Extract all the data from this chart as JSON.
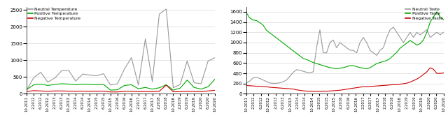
{
  "x_labels": [
    "10.2011",
    "2.2012",
    "6.2012",
    "10.2012",
    "2.2013",
    "6.2013",
    "10.2013",
    "2.2014",
    "6.2014",
    "10.2014",
    "2.2015",
    "6.2015",
    "10.2015",
    "2.2016",
    "6.2016",
    "10.2016",
    "2.2017",
    "6.2017",
    "10.2017",
    "2.2018",
    "6.2018",
    "10.2018",
    "2.2019",
    "6.2019",
    "10.2019",
    "2.2020",
    "6.2020",
    "10.2020"
  ],
  "temp_neutral": [
    120,
    490,
    640,
    350,
    470,
    690,
    700,
    380,
    590,
    560,
    540,
    600,
    260,
    300,
    740,
    1080,
    260,
    1640,
    360,
    2380,
    2530,
    180,
    280,
    980,
    330,
    300,
    980,
    1080
  ],
  "temp_positive": [
    130,
    270,
    290,
    250,
    280,
    300,
    290,
    270,
    290,
    280,
    270,
    280,
    110,
    120,
    250,
    270,
    150,
    190,
    140,
    180,
    270,
    110,
    170,
    410,
    190,
    140,
    210,
    440
  ],
  "temp_negative": [
    70,
    95,
    85,
    75,
    85,
    85,
    80,
    75,
    80,
    75,
    75,
    80,
    55,
    55,
    75,
    75,
    65,
    70,
    65,
    75,
    260,
    60,
    65,
    75,
    70,
    65,
    85,
    105
  ],
  "taste_neutral": [
    210,
    250,
    310,
    320,
    300,
    270,
    240,
    210,
    205,
    205,
    215,
    235,
    270,
    340,
    420,
    470,
    460,
    440,
    420,
    410,
    430,
    900,
    1250,
    800,
    800,
    1000,
    1050,
    900,
    1000,
    950,
    900,
    850,
    850,
    800,
    1000,
    1100,
    1000,
    850,
    800,
    750,
    850,
    900,
    1100,
    1250,
    1300,
    1200,
    1100,
    1000,
    1100,
    1200,
    1100,
    1200,
    1150,
    1200,
    1250,
    1100,
    1150,
    1200,
    1150,
    1200
  ],
  "taste_positive": [
    1580,
    1480,
    1440,
    1430,
    1390,
    1340,
    1240,
    1190,
    1140,
    1090,
    1040,
    990,
    940,
    890,
    840,
    790,
    740,
    690,
    670,
    640,
    610,
    590,
    570,
    550,
    530,
    510,
    500,
    490,
    500,
    510,
    530,
    550,
    550,
    530,
    510,
    500,
    490,
    510,
    550,
    590,
    610,
    630,
    650,
    690,
    750,
    810,
    890,
    940,
    990,
    1040,
    1000,
    950,
    980,
    1050,
    1200,
    1400,
    1500,
    1600,
    1500,
    1450
  ],
  "taste_negative": [
    160,
    158,
    153,
    148,
    148,
    143,
    138,
    128,
    123,
    118,
    113,
    108,
    103,
    98,
    93,
    78,
    68,
    58,
    53,
    48,
    48,
    48,
    48,
    48,
    50,
    55,
    60,
    65,
    70,
    80,
    90,
    100,
    110,
    120,
    130,
    138,
    138,
    143,
    148,
    153,
    158,
    163,
    168,
    173,
    178,
    178,
    188,
    198,
    208,
    228,
    258,
    288,
    328,
    378,
    428,
    508,
    478,
    398,
    398,
    408
  ],
  "temp_ylim": [
    0,
    2600
  ],
  "temp_yticks": [
    0,
    500,
    1000,
    1500,
    2000,
    2500
  ],
  "taste_ylim": [
    0,
    1700
  ],
  "taste_yticks": [
    0,
    200,
    400,
    600,
    800,
    1000,
    1200,
    1400,
    1600
  ],
  "legend1": [
    "Neutral Temperature",
    "Positive Temperature",
    "Negative Temperature"
  ],
  "legend2": [
    "Neutral Taste",
    "Positive Taste",
    "Negative Taste"
  ],
  "colors": {
    "neutral": "#999999",
    "positive": "#00aa00",
    "negative": "#cc0000"
  },
  "lw": 0.8
}
